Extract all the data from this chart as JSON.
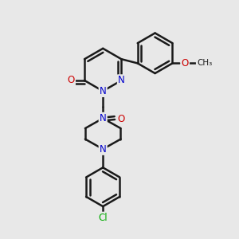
{
  "bg_color": "#e8e8e8",
  "bond_color": "#1a1a1a",
  "bond_width": 1.8,
  "atom_colors": {
    "N": "#0000cc",
    "O": "#cc0000",
    "Cl": "#00aa00",
    "C": "#1a1a1a"
  },
  "font_size": 8.5,
  "fig_w": 3.0,
  "fig_h": 3.0,
  "dpi": 100
}
